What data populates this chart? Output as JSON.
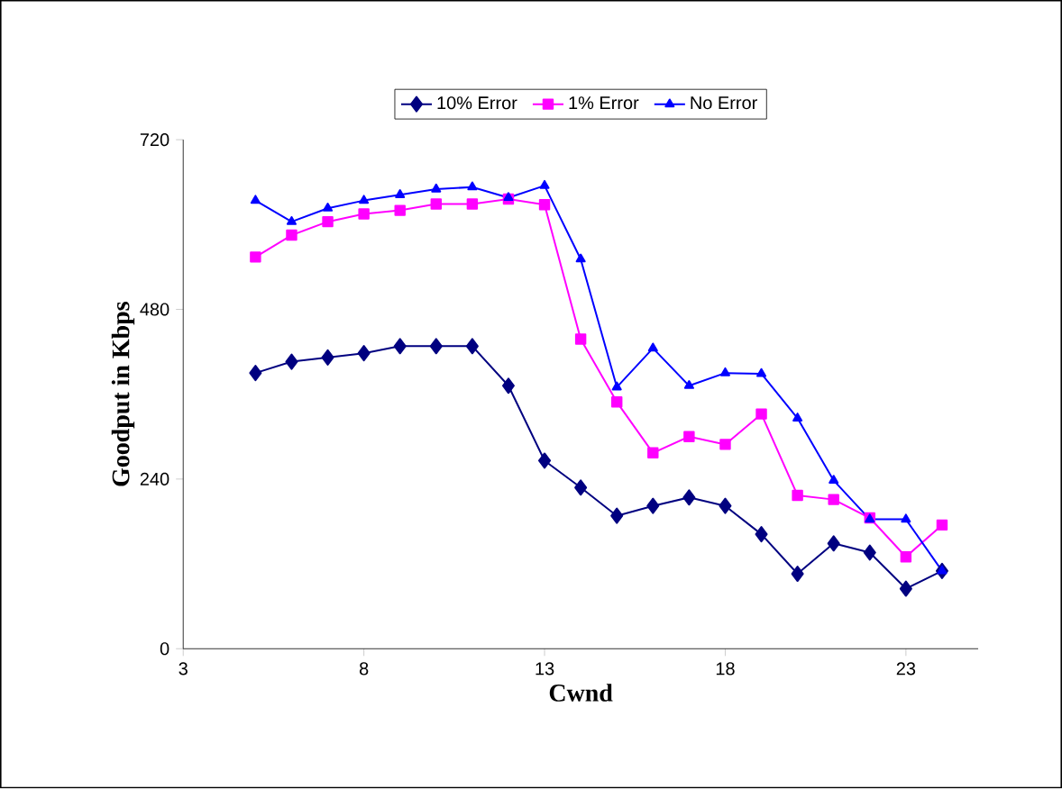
{
  "chart_data": {
    "type": "line",
    "xlabel": "Cwnd",
    "ylabel": "Goodput in Kbps",
    "x": [
      5,
      6,
      7,
      8,
      9,
      10,
      11,
      12,
      13,
      14,
      15,
      16,
      17,
      18,
      19,
      20,
      21,
      22,
      23,
      24
    ],
    "series": [
      {
        "name": "10% Error",
        "color": "#000080",
        "marker": "diamond",
        "values": [
          390,
          406,
          412,
          418,
          428,
          428,
          428,
          372,
          266,
          228,
          188,
          202,
          214,
          202,
          162,
          106,
          149,
          136,
          85,
          110
        ]
      },
      {
        "name": "1% Error",
        "color": "#ff00ff",
        "marker": "square",
        "values": [
          554,
          585,
          604,
          615,
          620,
          629,
          629,
          636,
          628,
          438,
          349,
          277,
          300,
          289,
          332,
          217,
          211,
          185,
          130,
          175
        ]
      },
      {
        "name": "No Error",
        "color": "#0000ff",
        "marker": "triangle",
        "values": [
          634,
          604,
          623,
          634,
          642,
          650,
          653,
          638,
          655,
          551,
          370,
          425,
          372,
          390,
          389,
          326,
          238,
          183,
          183,
          110
        ]
      }
    ],
    "xlim": [
      3,
      25
    ],
    "ylim": [
      0,
      720
    ],
    "xticks": [
      3,
      8,
      13,
      18,
      23
    ],
    "yticks": [
      0,
      240,
      480,
      720
    ],
    "grid": false,
    "legend": "top",
    "line_style": "solid"
  }
}
